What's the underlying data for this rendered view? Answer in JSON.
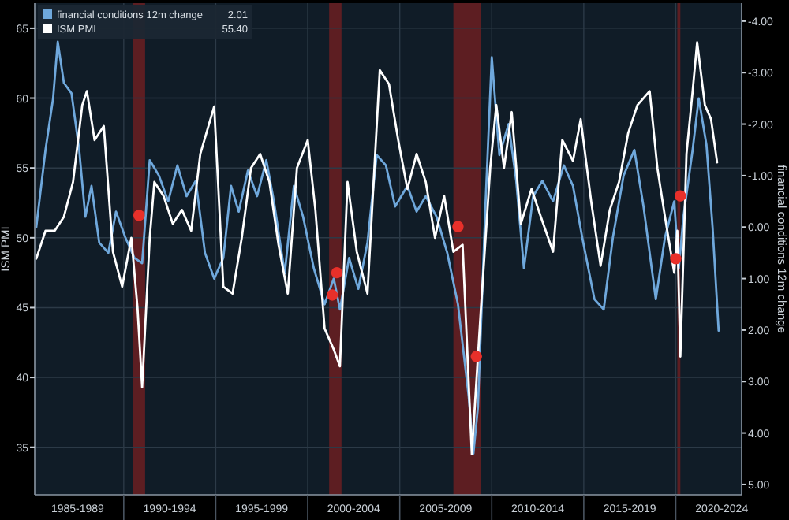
{
  "chart_data": {
    "type": "line",
    "ylabel": "ISM PMI",
    "y2label": "financial conditions 12m change",
    "xlim": [
      "1985-03",
      "2023-08"
    ],
    "xticks": [
      {
        "value": "1987-07",
        "label": "1985-1989"
      },
      {
        "value": "1990-01",
        "label": null
      },
      {
        "value": "1992-07",
        "label": "1990-1994"
      },
      {
        "value": "1995-01",
        "label": null
      },
      {
        "value": "1997-07",
        "label": "1995-1999"
      },
      {
        "value": "2000-01",
        "label": null
      },
      {
        "value": "2002-07",
        "label": "2000-2004"
      },
      {
        "value": "2005-01",
        "label": null
      },
      {
        "value": "2007-07",
        "label": "2005-2009"
      },
      {
        "value": "2010-01",
        "label": null
      },
      {
        "value": "2012-07",
        "label": "2010-2014"
      },
      {
        "value": "2015-01",
        "label": null
      },
      {
        "value": "2017-07",
        "label": "2015-2019"
      },
      {
        "value": "2020-01",
        "label": null
      },
      {
        "value": "2022-07",
        "label": "2020-2024"
      }
    ],
    "ylim": [
      31.6,
      66.8
    ],
    "yticks": [
      35,
      40,
      45,
      50,
      55,
      60,
      65
    ],
    "y2lim": [
      5.2,
      -4.35
    ],
    "y2ticks": [
      {
        "value": -4,
        "label": "-4.00"
      },
      {
        "value": -3,
        "label": "-3.00"
      },
      {
        "value": -2,
        "label": "-2.00"
      },
      {
        "value": -1,
        "label": "-1.00"
      },
      {
        "value": 0,
        "label": "0.00"
      },
      {
        "value": 1,
        "label": "1.00"
      },
      {
        "value": 2,
        "label": "2.00"
      },
      {
        "value": 3,
        "label": "3.00"
      },
      {
        "value": 4,
        "label": "4.00"
      },
      {
        "value": 5,
        "label": "5.00"
      }
    ],
    "grid": true,
    "legend": "top left",
    "line_style": "solid",
    "annotations": [
      "2.01",
      "55.40"
    ],
    "bands": [
      {
        "axis": "x",
        "from": "1990-07",
        "to": "1991-03",
        "color": "#6b1f22"
      },
      {
        "axis": "x",
        "from": "2001-03",
        "to": "2001-11",
        "color": "#6b1f22"
      },
      {
        "axis": "x",
        "from": "2007-12",
        "to": "2009-06",
        "color": "#6b1f22"
      },
      {
        "axis": "x",
        "from": "2020-02",
        "to": "2020-04",
        "color": "#6b1f22"
      }
    ],
    "series": [
      {
        "name": "financial conditions 12m change",
        "color": "#6fa8dc",
        "axis": "y2",
        "x": [
          "1985-04",
          "1985-10",
          "1986-03",
          "1986-06",
          "1986-10",
          "1987-03",
          "1987-08",
          "1987-12",
          "1988-04",
          "1988-09",
          "1989-03",
          "1989-08",
          "1990-02",
          "1990-08",
          "1991-01",
          "1991-06",
          "1991-12",
          "1992-06",
          "1992-12",
          "1993-06",
          "1993-12",
          "1994-06",
          "1994-12",
          "1995-06",
          "1995-11",
          "1996-04",
          "1996-10",
          "1997-04",
          "1997-10",
          "1998-03",
          "1998-10",
          "1999-04",
          "1999-10",
          "2000-05",
          "2000-12",
          "2001-06",
          "2001-10",
          "2002-04",
          "2002-10",
          "2003-04",
          "2003-10",
          "2004-04",
          "2004-10",
          "2005-06",
          "2005-12",
          "2006-06",
          "2007-01",
          "2007-08",
          "2008-03",
          "2008-10",
          "2009-01",
          "2009-04",
          "2009-09",
          "2010-01",
          "2010-06",
          "2010-12",
          "2011-05",
          "2011-10",
          "2012-04",
          "2012-10",
          "2013-05",
          "2013-12",
          "2014-06",
          "2014-12",
          "2015-08",
          "2016-02",
          "2016-08",
          "2017-03",
          "2017-10",
          "2018-04",
          "2018-12",
          "2019-06",
          "2019-12",
          "2020-03",
          "2020-06",
          "2020-12",
          "2021-04",
          "2021-09",
          "2022-01",
          "2022-05"
        ],
        "values": [
          0.0,
          -1.5,
          -2.5,
          -3.6,
          -2.8,
          -2.6,
          -1.5,
          -0.2,
          -0.8,
          0.3,
          0.5,
          -0.3,
          0.2,
          0.6,
          0.7,
          -1.3,
          -1.0,
          -0.5,
          -1.2,
          -0.6,
          -0.9,
          0.5,
          1.0,
          0.6,
          -0.8,
          -0.3,
          -1.1,
          -0.6,
          -1.3,
          -0.5,
          0.9,
          -0.8,
          -0.2,
          0.8,
          1.5,
          1.0,
          1.6,
          0.6,
          1.2,
          0.3,
          -1.4,
          -1.2,
          -0.4,
          -0.8,
          -0.3,
          -0.6,
          -0.2,
          0.5,
          1.5,
          3.3,
          4.4,
          3.5,
          -0.5,
          -3.3,
          -1.4,
          -2.0,
          -0.9,
          0.8,
          -0.6,
          -0.9,
          -0.5,
          -1.2,
          -0.8,
          0.2,
          1.4,
          1.6,
          0.2,
          -1.0,
          -1.5,
          -0.4,
          1.4,
          0.2,
          -0.5,
          0.8,
          -0.2,
          -1.5,
          -2.5,
          -1.6,
          0.0,
          2.01
        ]
      },
      {
        "name": "ISM PMI",
        "color": "#ffffff",
        "axis": "y",
        "x": [
          "1985-04",
          "1985-10",
          "1986-04",
          "1986-10",
          "1987-04",
          "1987-10",
          "1988-01",
          "1988-06",
          "1988-12",
          "1989-06",
          "1989-12",
          "1990-06",
          "1990-10",
          "1991-01",
          "1991-06",
          "1991-09",
          "1992-03",
          "1992-09",
          "1993-03",
          "1993-09",
          "1994-03",
          "1994-12",
          "1995-06",
          "1995-12",
          "1996-06",
          "1996-12",
          "1997-06",
          "1997-12",
          "1998-06",
          "1998-12",
          "1999-06",
          "2000-01",
          "2000-06",
          "2000-12",
          "2001-06",
          "2001-10",
          "2002-03",
          "2002-09",
          "2003-04",
          "2003-12",
          "2004-06",
          "2004-12",
          "2005-06",
          "2005-12",
          "2006-06",
          "2006-12",
          "2007-06",
          "2007-12",
          "2008-06",
          "2008-12",
          "2009-06",
          "2009-12",
          "2010-04",
          "2010-09",
          "2011-02",
          "2011-08",
          "2012-03",
          "2012-09",
          "2013-05",
          "2013-11",
          "2014-06",
          "2014-11",
          "2015-06",
          "2015-12",
          "2016-06",
          "2016-12",
          "2017-06",
          "2017-12",
          "2018-08",
          "2019-01",
          "2019-06",
          "2019-12",
          "2020-02",
          "2020-04",
          "2020-08",
          "2020-12",
          "2021-03",
          "2021-08",
          "2021-12",
          "2022-04"
        ],
        "values": [
          48.5,
          50.5,
          50.5,
          51.5,
          54,
          59.5,
          60.5,
          57,
          58,
          49,
          46.5,
          50,
          45,
          39.3,
          50,
          54,
          53,
          51,
          52,
          50.5,
          56,
          59.4,
          46.5,
          46,
          50,
          55,
          56,
          54,
          49.5,
          46,
          55,
          57,
          52,
          43.5,
          42,
          40.8,
          54,
          49,
          46,
          62,
          61,
          57,
          53.5,
          56,
          54,
          50,
          53,
          49,
          49.5,
          34.5,
          45,
          55,
          59.5,
          55,
          59,
          51,
          53.5,
          51.5,
          49,
          57,
          55.5,
          58.5,
          52.5,
          48,
          52,
          54,
          57.5,
          59.5,
          60.5,
          55,
          51.5,
          47.5,
          50.5,
          41.5,
          56,
          60.5,
          64,
          59.5,
          58.5,
          55.4
        ]
      },
      {
        "type": "scatter",
        "color": "#e8302a",
        "axis": "y",
        "marker": "circle",
        "x": [
          "1990-11",
          "2001-05",
          "2001-08",
          "2008-03",
          "2009-03",
          "2020-01",
          "2020-04"
        ],
        "values": [
          51.6,
          45.9,
          47.5,
          50.8,
          41.5,
          48.5,
          53.0
        ]
      }
    ]
  }
}
